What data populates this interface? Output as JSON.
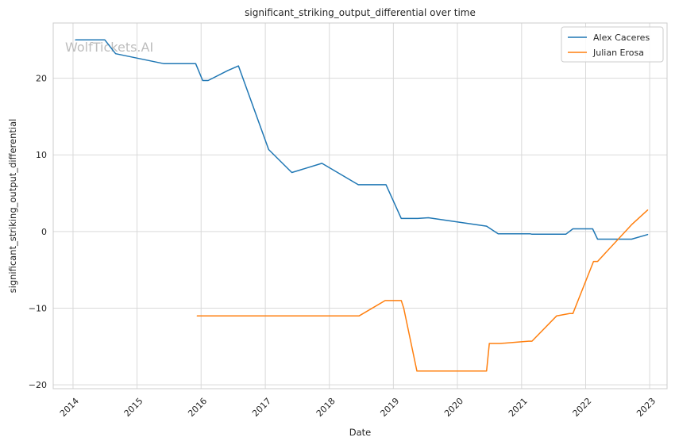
{
  "chart_data": {
    "type": "line",
    "title": "significant_striking_output_differential over time",
    "xlabel": "Date",
    "ylabel": "significant_striking_output_differential",
    "watermark": "WolfTickets.AI",
    "x_axis": "date",
    "xlim": [
      "2013-09-10",
      "2023-04-10"
    ],
    "ylim": [
      -20.5,
      27.2
    ],
    "x_ticks": [
      "2014",
      "2015",
      "2016",
      "2017",
      "2018",
      "2019",
      "2020",
      "2021",
      "2022",
      "2023"
    ],
    "y_ticks": [
      -20,
      -10,
      0,
      10,
      20
    ],
    "grid": true,
    "legend_position": "top-right",
    "colors": {
      "Alex Caceres": "#1f77b4",
      "Julian Erosa": "#ff7f0e",
      "grid": "#d9d9d9",
      "spine": "#cccccc"
    },
    "series": [
      {
        "name": "Alex Caceres",
        "points": [
          [
            "2014-01-15",
            25.0
          ],
          [
            "2014-07-01",
            25.0
          ],
          [
            "2014-09-01",
            23.2
          ],
          [
            "2015-06-01",
            21.9
          ],
          [
            "2015-12-01",
            21.9
          ],
          [
            "2016-01-10",
            19.7
          ],
          [
            "2016-02-10",
            19.7
          ],
          [
            "2016-06-01",
            21.0
          ],
          [
            "2016-08-01",
            21.6
          ],
          [
            "2017-01-20",
            10.7
          ],
          [
            "2017-06-01",
            7.7
          ],
          [
            "2017-11-20",
            8.9
          ],
          [
            "2018-06-15",
            6.1
          ],
          [
            "2018-11-20",
            6.1
          ],
          [
            "2019-02-15",
            1.7
          ],
          [
            "2019-05-20",
            1.7
          ],
          [
            "2019-07-20",
            1.8
          ],
          [
            "2020-06-15",
            0.7
          ],
          [
            "2020-08-20",
            -0.3
          ],
          [
            "2021-02-20",
            -0.3
          ],
          [
            "2021-03-01",
            -0.35
          ],
          [
            "2021-09-10",
            -0.35
          ],
          [
            "2021-10-20",
            0.35
          ],
          [
            "2022-02-10",
            0.35
          ],
          [
            "2022-03-10",
            -1.0
          ],
          [
            "2022-09-20",
            -1.0
          ],
          [
            "2022-12-20",
            -0.4
          ]
        ]
      },
      {
        "name": "Julian Erosa",
        "points": [
          [
            "2015-12-10",
            -11.0
          ],
          [
            "2018-06-20",
            -11.0
          ],
          [
            "2018-11-15",
            -9.0
          ],
          [
            "2019-02-15",
            -9.0
          ],
          [
            "2019-03-01",
            -10.0
          ],
          [
            "2019-05-15",
            -18.2
          ],
          [
            "2020-06-15",
            -18.2
          ],
          [
            "2020-07-01",
            -14.6
          ],
          [
            "2020-09-01",
            -14.6
          ],
          [
            "2021-02-10",
            -14.3
          ],
          [
            "2021-03-01",
            -14.3
          ],
          [
            "2021-07-20",
            -11.0
          ],
          [
            "2021-10-01",
            -10.7
          ],
          [
            "2021-10-20",
            -10.7
          ],
          [
            "2022-02-15",
            -3.9
          ],
          [
            "2022-03-10",
            -3.9
          ],
          [
            "2022-09-20",
            0.9
          ],
          [
            "2022-12-20",
            2.8
          ]
        ]
      }
    ]
  }
}
